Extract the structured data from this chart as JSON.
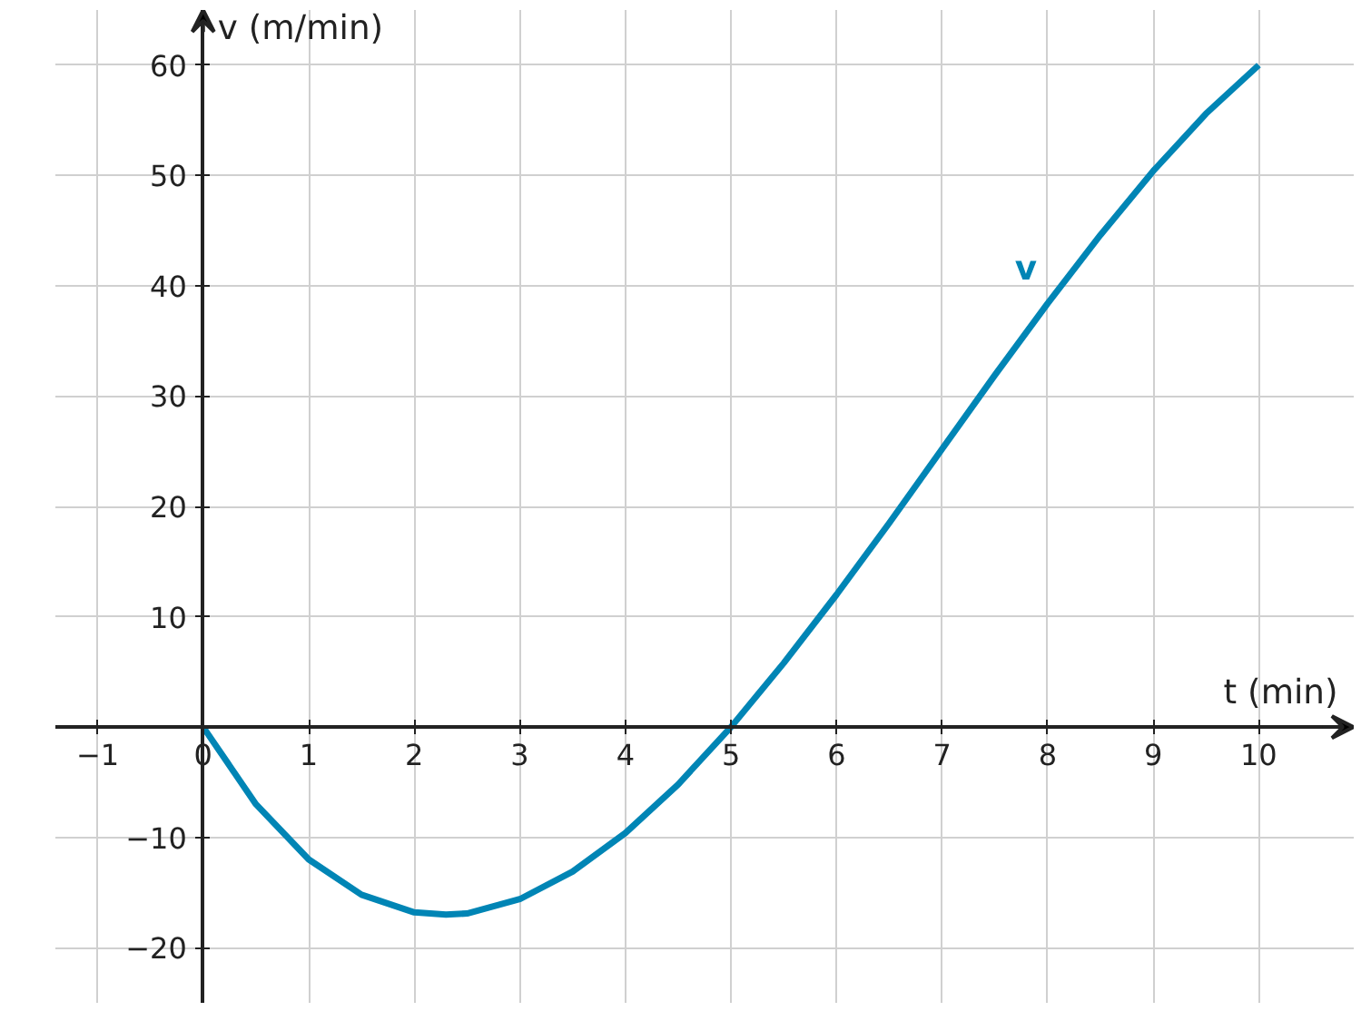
{
  "chart_data": {
    "type": "line",
    "xlabel": "t (min)",
    "ylabel": "v (m/min)",
    "x": [
      0,
      0.5,
      1,
      1.5,
      2,
      2.3,
      2.5,
      3,
      3.5,
      4,
      4.5,
      5,
      5.5,
      6,
      6.5,
      7,
      7.5,
      8,
      8.5,
      9,
      9.5,
      10
    ],
    "series": [
      {
        "name": "v",
        "color": "#0085b5",
        "values": [
          0,
          -7.0,
          -12,
          -15.2,
          -16.8,
          -17.0,
          -16.9,
          -15.6,
          -13.1,
          -9.6,
          -5.2,
          0,
          5.8,
          12.0,
          18.5,
          25.2,
          31.9,
          38.4,
          44.6,
          50.4,
          55.6,
          60
        ]
      }
    ],
    "xlim": [
      -1.4,
      10.9
    ],
    "ylim": [
      -25,
      65
    ],
    "xticks": [
      {
        "value": -1,
        "label": "−1"
      },
      0,
      1,
      2,
      3,
      4,
      5,
      6,
      7,
      8,
      9,
      10
    ],
    "yticks": [
      {
        "value": -20,
        "label": "−20"
      },
      {
        "value": -10,
        "label": "−10"
      },
      10,
      20,
      30,
      40,
      50,
      60
    ],
    "grid": true,
    "marker": "none",
    "line_style": "solid",
    "legend": false
  }
}
